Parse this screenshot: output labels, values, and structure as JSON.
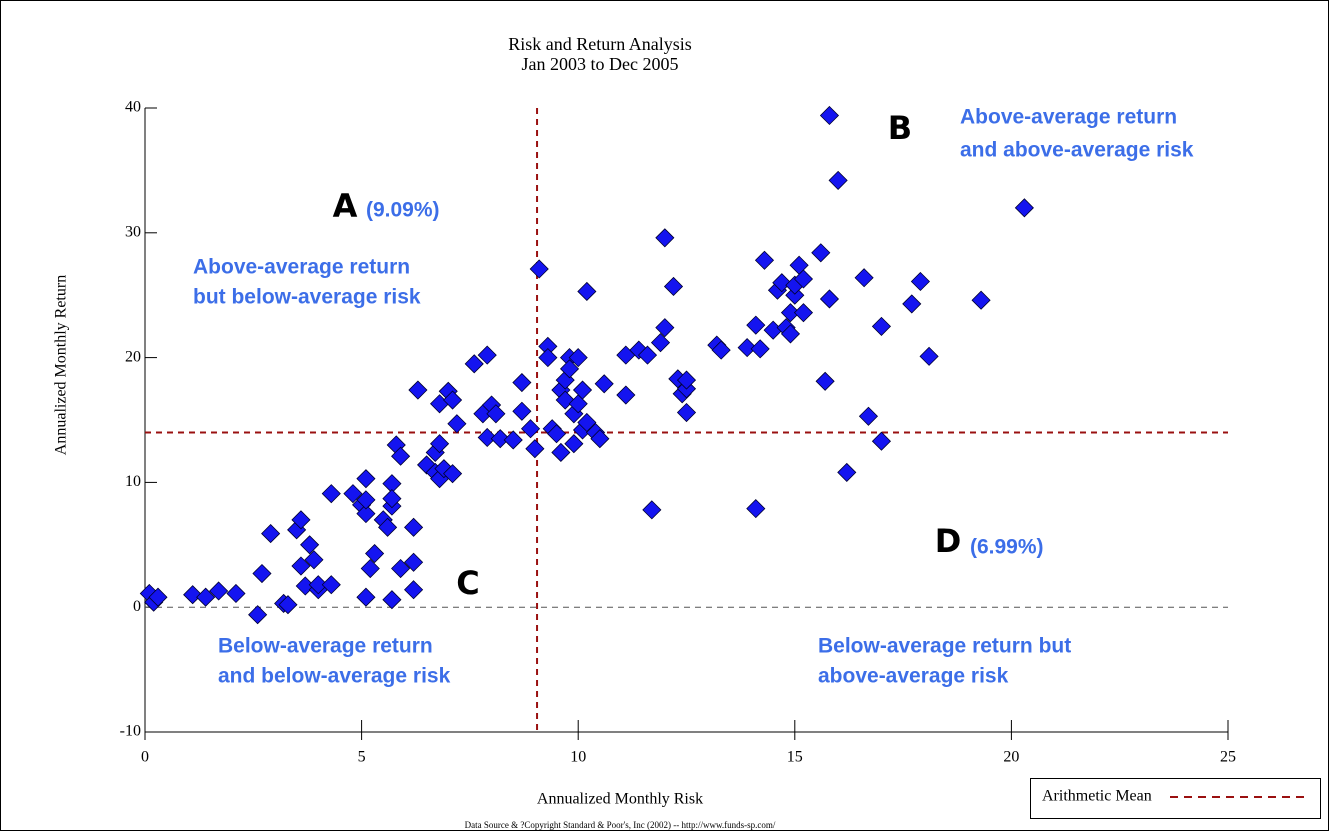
{
  "chart_data": {
    "type": "scatter",
    "title": "Risk and Return Analysis",
    "subtitle": "Jan 2003 to Dec 2005",
    "x_label": "Annualized Monthly  Risk",
    "y_label": "Annualized Monthly Return",
    "footnote": "Data Source & ?Copyright Standard & Poor's, Inc (2002) -- http://www.funds-sp.com/",
    "xlim": [
      0,
      25
    ],
    "xticks": [
      0,
      5,
      10,
      15,
      20,
      25
    ],
    "ylim": [
      -10,
      40
    ],
    "yticks": [
      -10,
      0,
      10,
      20,
      30,
      40
    ],
    "zero_line": true,
    "marker_color": "#1414f0",
    "mean": {
      "label": "Arithmetic Mean",
      "x": 9.05,
      "y": 14.0,
      "color": "#9a1010"
    },
    "quadrants": [
      {
        "letter": "A",
        "share": "(9.09%)",
        "lines": [
          "Above-average return",
          "but below-average risk"
        ]
      },
      {
        "letter": "B",
        "lines": [
          "Above-average return",
          "and above-average risk"
        ]
      },
      {
        "letter": "C",
        "lines": [
          "Below-average return",
          "and below-average risk"
        ]
      },
      {
        "letter": "D",
        "share": "(6.99%)",
        "lines": [
          "Below-average return but",
          "above-average risk"
        ]
      }
    ],
    "x": [
      0.1,
      0.2,
      0.3,
      1.1,
      1.4,
      1.7,
      2.1,
      2.6,
      2.7,
      2.9,
      3.2,
      3.3,
      3.5,
      3.6,
      3.6,
      3.7,
      3.8,
      3.9,
      4.0,
      4.0,
      4.3,
      4.3,
      4.8,
      5.0,
      5.1,
      5.1,
      5.1,
      5.1,
      5.2,
      5.3,
      5.5,
      5.6,
      5.7,
      5.7,
      5.7,
      5.7,
      5.9,
      5.8,
      5.9,
      6.2,
      6.2,
      6.2,
      6.3,
      6.5,
      6.7,
      6.7,
      6.8,
      6.8,
      6.8,
      6.9,
      7.0,
      7.1,
      7.1,
      7.2,
      7.6,
      7.8,
      7.9,
      8.0,
      7.9,
      8.1,
      8.2,
      8.5,
      8.7,
      8.7,
      8.9,
      9.0,
      9.1,
      9.3,
      9.3,
      9.4,
      9.5,
      9.6,
      9.6,
      9.7,
      9.7,
      9.8,
      9.8,
      9.9,
      9.9,
      10.0,
      10.0,
      10.1,
      10.1,
      10.2,
      10.2,
      10.4,
      10.5,
      10.6,
      11.1,
      11.1,
      11.4,
      11.6,
      11.7,
      11.9,
      12.0,
      12.0,
      12.2,
      12.3,
      12.4,
      12.5,
      12.5,
      12.5,
      13.2,
      13.3,
      13.9,
      14.1,
      14.1,
      14.2,
      14.3,
      14.5,
      14.6,
      14.7,
      14.8,
      14.9,
      14.9,
      15.0,
      15.0,
      15.1,
      15.2,
      15.2,
      15.6,
      15.8,
      15.7,
      15.8,
      16.0,
      16.2,
      16.6,
      16.7,
      17.0,
      17.0,
      17.7,
      17.9,
      18.1,
      19.3,
      20.3
    ],
    "y": [
      1.1,
      0.4,
      0.8,
      1.0,
      0.8,
      1.3,
      1.1,
      -0.6,
      2.7,
      5.9,
      0.3,
      0.2,
      6.2,
      7.0,
      3.3,
      1.7,
      5.0,
      3.8,
      1.4,
      1.8,
      1.8,
      9.1,
      9.1,
      8.2,
      7.5,
      10.3,
      8.6,
      0.8,
      3.1,
      4.3,
      7.0,
      6.4,
      8.1,
      9.9,
      8.7,
      0.6,
      3.1,
      13.0,
      12.1,
      3.6,
      6.4,
      1.4,
      17.4,
      11.4,
      10.8,
      12.4,
      13.1,
      10.3,
      16.3,
      11.1,
      17.3,
      16.6,
      10.7,
      14.7,
      19.5,
      15.5,
      20.2,
      16.2,
      13.6,
      15.5,
      13.5,
      13.4,
      18.0,
      15.7,
      14.3,
      12.7,
      27.1,
      20.9,
      20.0,
      14.3,
      13.9,
      12.4,
      17.4,
      18.2,
      16.6,
      20.0,
      19.1,
      13.1,
      15.5,
      20.0,
      16.3,
      14.2,
      17.4,
      25.3,
      14.8,
      14.0,
      13.5,
      17.9,
      17.0,
      20.2,
      20.6,
      20.2,
      7.8,
      21.2,
      22.4,
      29.6,
      25.7,
      18.3,
      17.1,
      17.5,
      18.2,
      15.6,
      21.0,
      20.6,
      20.8,
      22.6,
      7.9,
      20.7,
      27.8,
      22.2,
      25.4,
      26.0,
      22.4,
      23.6,
      21.9,
      25.0,
      25.8,
      27.4,
      26.3,
      23.6,
      28.4,
      39.4,
      18.1,
      24.7,
      34.2,
      10.8,
      26.4,
      15.3,
      22.5,
      13.3,
      24.3,
      26.1,
      20.1,
      24.6,
      32.0
    ]
  }
}
